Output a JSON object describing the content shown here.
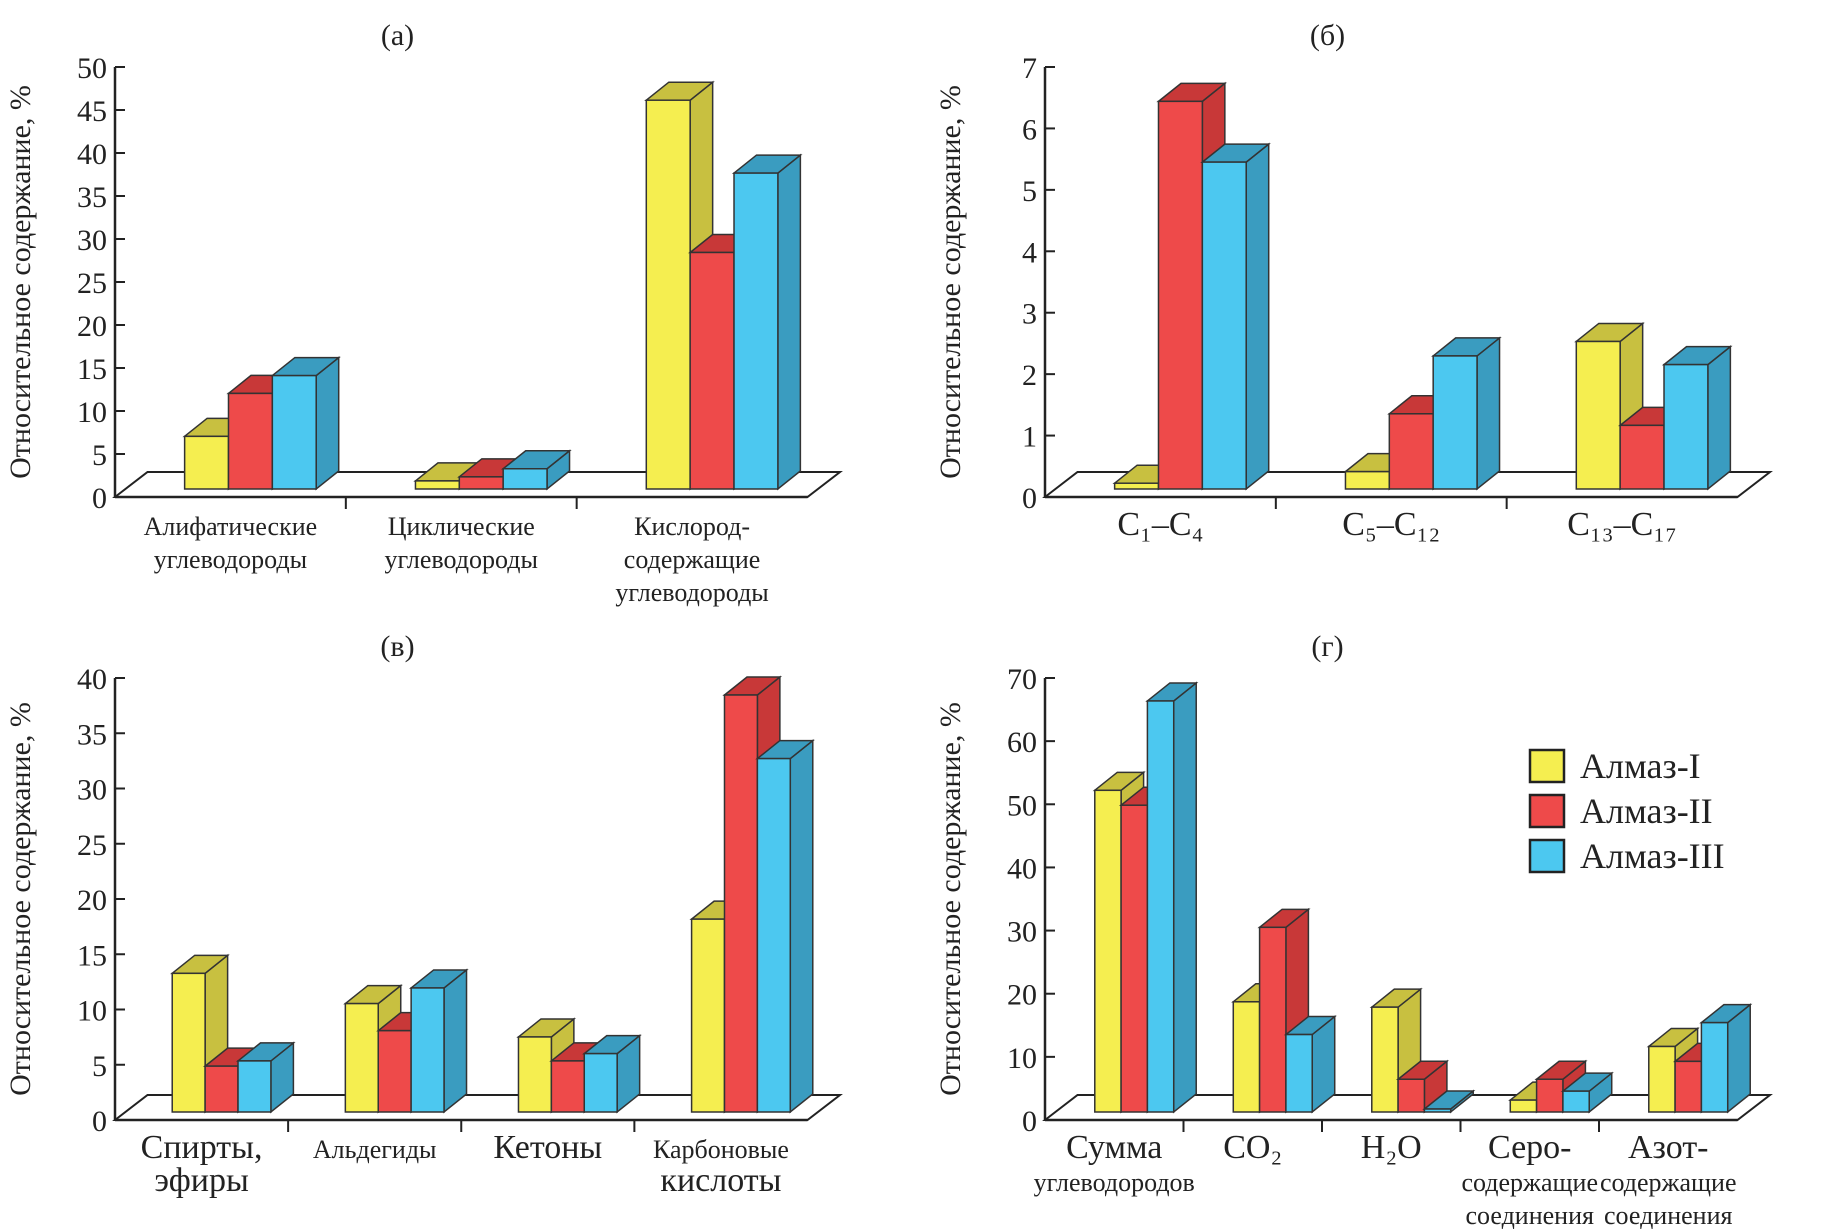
{
  "colors": {
    "yellow": "#f5ee50",
    "red": "#ee4a4a",
    "blue": "#4cc8f0"
  },
  "legend": [
    "Алмаз-I",
    "Алмаз-II",
    "Алмаз-III"
  ],
  "chart_data": [
    {
      "type": "bar",
      "title": "(а)",
      "ylabel": "Относительное содержание, %",
      "ylim": [
        0,
        50
      ],
      "yticks": [
        0,
        5,
        10,
        15,
        20,
        25,
        30,
        35,
        40,
        45,
        50
      ],
      "categories": [
        [
          "Алифатические",
          "углеводороды"
        ],
        [
          "Циклические",
          "углеводороды"
        ],
        [
          "Кислород-",
          "содержащие",
          "углеводороды"
        ]
      ],
      "series": [
        {
          "name": "Алмаз-I",
          "values": [
            6.5,
            1,
            48
          ]
        },
        {
          "name": "Алмаз-II",
          "values": [
            11.8,
            1.5,
            29.2
          ]
        },
        {
          "name": "Алмаз-III",
          "values": [
            14,
            2.5,
            39
          ]
        }
      ]
    },
    {
      "type": "bar",
      "title": "(б)",
      "ylabel": "Относительное содержание, %",
      "ylim": [
        0,
        7
      ],
      "yticks": [
        0,
        1,
        2,
        3,
        4,
        5,
        6,
        7
      ],
      "categories": [
        [
          "C₁–C₄"
        ],
        [
          "C₅–C₁₂"
        ],
        [
          "C₁₃–C₁₇"
        ]
      ],
      "series": [
        {
          "name": "Алмаз-I",
          "values": [
            0.1,
            0.3,
            2.55
          ]
        },
        {
          "name": "Алмаз-II",
          "values": [
            6.7,
            1.3,
            1.1
          ]
        },
        {
          "name": "Алмаз-III",
          "values": [
            5.65,
            2.3,
            2.15
          ]
        }
      ]
    },
    {
      "type": "bar",
      "title": "(в)",
      "ylabel": "Относительное содержание, %",
      "ylim": [
        0,
        40
      ],
      "yticks": [
        0,
        5,
        10,
        15,
        20,
        25,
        30,
        35,
        40
      ],
      "categories": [
        [
          "Спирты,",
          "эфиры"
        ],
        [
          "Альдегиды"
        ],
        [
          "Кетоны"
        ],
        [
          "Карбоновые",
          "кислоты"
        ]
      ],
      "series": [
        {
          "name": "Алмаз-I",
          "values": [
            13.3,
            10.4,
            7.2,
            18.5
          ]
        },
        {
          "name": "Алмаз-II",
          "values": [
            4.4,
            7.8,
            4.9,
            40
          ]
        },
        {
          "name": "Алмаз-III",
          "values": [
            4.9,
            11.9,
            5.6,
            33.9
          ]
        }
      ]
    },
    {
      "type": "bar",
      "title": "(г)",
      "ylabel": "Относительное содержание, %",
      "ylim": [
        0,
        70
      ],
      "yticks": [
        0,
        10,
        20,
        30,
        40,
        50,
        60,
        70
      ],
      "legend": "top-right",
      "categories": [
        [
          "Сумма",
          "углеводородов"
        ],
        [
          "CO₂"
        ],
        [
          "H₂O"
        ],
        [
          "Серо-",
          "содержащие",
          "соединения"
        ],
        [
          "Азот-",
          "содержащие",
          "соединения"
        ]
      ],
      "series": [
        {
          "name": "Алмаз-I",
          "values": [
            54,
            18.5,
            17.6,
            2,
            11
          ]
        },
        {
          "name": "Алмаз-II",
          "values": [
            51.5,
            31,
            5.5,
            5.5,
            8.5
          ]
        },
        {
          "name": "Алмаз-III",
          "values": [
            69,
            13,
            0.5,
            3.5,
            15
          ]
        }
      ]
    }
  ]
}
